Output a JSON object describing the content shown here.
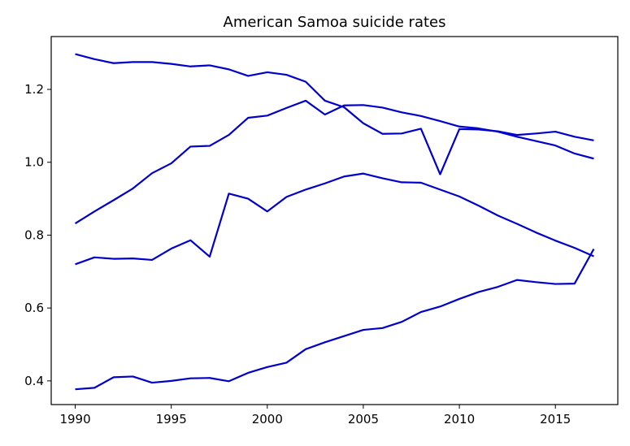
{
  "chart_data": {
    "type": "line",
    "title": "American Samoa suicide rates",
    "xlabel": "",
    "ylabel": "",
    "xlim": [
      1988.75,
      2018.25
    ],
    "ylim": [
      0.335,
      1.345
    ],
    "xticks": [
      1990,
      1995,
      2000,
      2005,
      2010,
      2015
    ],
    "yticks": [
      0.4,
      0.6,
      0.8,
      1.0,
      1.2
    ],
    "ytick_labels": [
      "0.4",
      "0.6",
      "0.8",
      "1.0",
      "1.2"
    ],
    "grid": false,
    "legend": "none",
    "line_color": "#0000cc",
    "x": [
      1990,
      1991,
      1992,
      1993,
      1994,
      1995,
      1996,
      1997,
      1998,
      1999,
      2000,
      2001,
      2002,
      2003,
      2004,
      2005,
      2006,
      2007,
      2008,
      2009,
      2010,
      2011,
      2012,
      2013,
      2014,
      2015,
      2016,
      2017
    ],
    "series": [
      {
        "values": [
          1.297,
          1.283,
          1.272,
          1.275,
          1.275,
          1.27,
          1.263,
          1.266,
          1.255,
          1.237,
          1.247,
          1.24,
          1.221,
          1.169,
          1.151,
          1.107,
          1.078,
          1.079,
          1.092,
          0.967,
          1.091,
          1.09,
          1.085,
          1.075,
          1.079,
          1.084,
          1.07,
          1.06
        ]
      },
      {
        "values": [
          0.832,
          0.865,
          0.896,
          0.928,
          0.97,
          0.997,
          1.043,
          1.045,
          1.075,
          1.122,
          1.128,
          1.149,
          1.169,
          1.131,
          1.156,
          1.157,
          1.15,
          1.137,
          1.127,
          1.113,
          1.098,
          1.093,
          1.084,
          1.07,
          1.058,
          1.046,
          1.024,
          1.01
        ]
      },
      {
        "values": [
          0.72,
          0.739,
          0.735,
          0.736,
          0.732,
          0.763,
          0.786,
          0.741,
          0.914,
          0.9,
          0.865,
          0.905,
          0.925,
          0.942,
          0.961,
          0.969,
          0.956,
          0.945,
          0.944,
          0.925,
          0.906,
          0.881,
          0.854,
          0.831,
          0.807,
          0.785,
          0.765,
          0.742
        ]
      },
      {
        "values": [
          0.377,
          0.381,
          0.41,
          0.412,
          0.395,
          0.4,
          0.407,
          0.408,
          0.399,
          0.422,
          0.438,
          0.45,
          0.487,
          0.506,
          0.523,
          0.54,
          0.545,
          0.562,
          0.589,
          0.604,
          0.625,
          0.644,
          0.658,
          0.677,
          0.671,
          0.666,
          0.667,
          0.762
        ]
      }
    ]
  }
}
